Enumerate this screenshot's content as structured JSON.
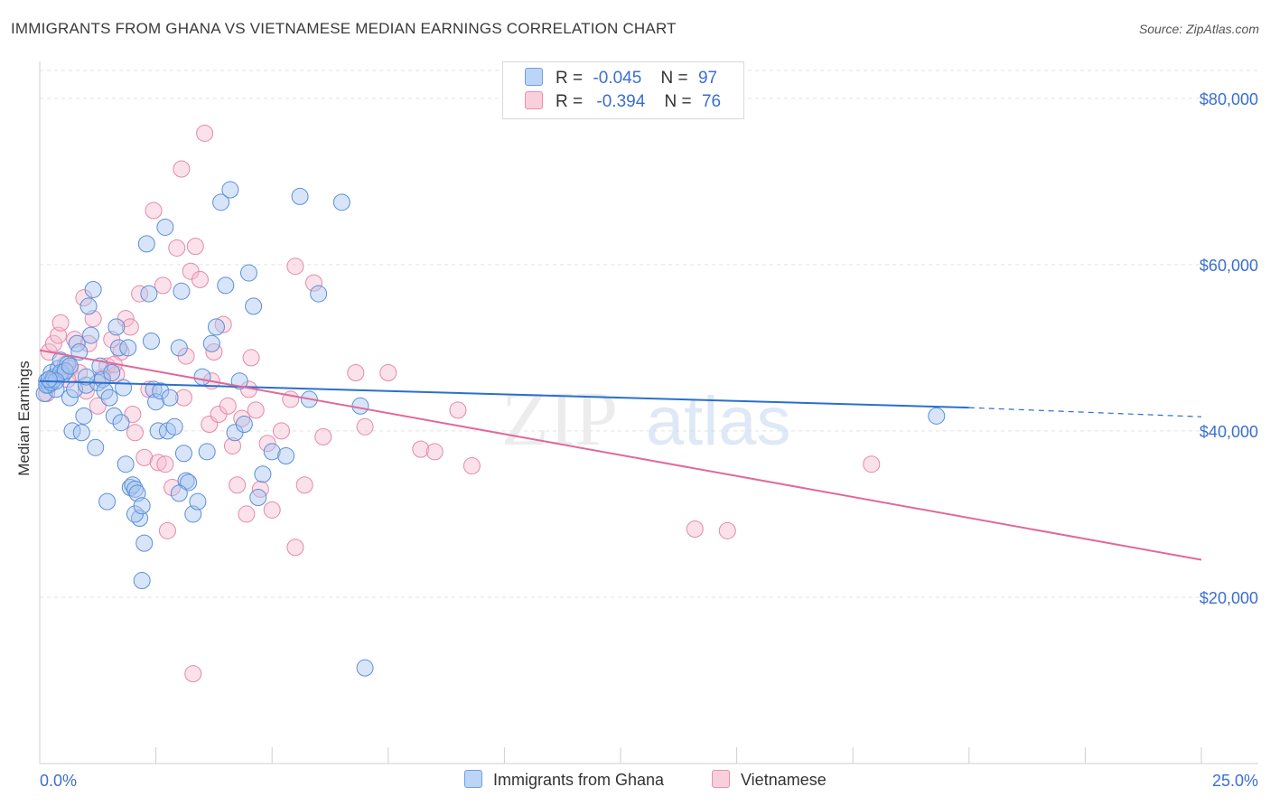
{
  "header": {
    "title": "IMMIGRANTS FROM GHANA VS VIETNAMESE MEDIAN EARNINGS CORRELATION CHART",
    "source": "Source: ZipAtlas.com"
  },
  "watermark": {
    "part1": "ZIP",
    "part2": "atlas"
  },
  "legend_top": [
    {
      "r_label": "R =",
      "r_value": "-0.045",
      "n_label": "N =",
      "n_value": "97"
    },
    {
      "r_label": "R =",
      "r_value": "-0.394",
      "n_label": "N =",
      "n_value": "76"
    }
  ],
  "legend_bottom": [
    {
      "label": "Immigrants from Ghana"
    },
    {
      "label": "Vietnamese"
    }
  ],
  "colors": {
    "ghana_fill": "#a8c6f0",
    "ghana_stroke": "#5b8fd9",
    "ghana_line": "#2a6fcf",
    "viet_fill": "#f7bdd0",
    "viet_stroke": "#e48aaa",
    "viet_line": "#e0699a",
    "axis_label": "#3a6fd1",
    "grid": "#e3e3e3"
  },
  "chart_data": {
    "type": "scatter",
    "title": "IMMIGRANTS FROM GHANA VS VIETNAMESE MEDIAN EARNINGS CORRELATION CHART",
    "xlabel": "",
    "ylabel": "Median Earnings",
    "xlim": [
      0,
      25
    ],
    "ylim": [
      0,
      84000
    ],
    "x_tick_labels": [
      "0.0%",
      "25.0%"
    ],
    "y_ticks": [
      20000,
      40000,
      60000,
      80000
    ],
    "y_tick_labels": [
      "$20,000",
      "$40,000",
      "$60,000",
      "$80,000"
    ],
    "grid": true,
    "legend_position": "top-center",
    "series": [
      {
        "name": "Immigrants from Ghana",
        "r": -0.045,
        "n": 97,
        "trend": {
          "x0": 0,
          "y0": 46000,
          "x1": 20,
          "y1": 42800,
          "dashed_to_x": 25,
          "dashed_to_y": 41700
        },
        "points": [
          [
            0.1,
            44500
          ],
          [
            0.15,
            46000
          ],
          [
            0.2,
            45500
          ],
          [
            0.25,
            47000
          ],
          [
            0.3,
            46500
          ],
          [
            0.35,
            45000
          ],
          [
            0.4,
            47500
          ],
          [
            0.45,
            48500
          ],
          [
            0.5,
            46800
          ],
          [
            0.55,
            47200
          ],
          [
            0.6,
            48000
          ],
          [
            0.65,
            44000
          ],
          [
            0.7,
            40000
          ],
          [
            0.75,
            45000
          ],
          [
            0.8,
            50500
          ],
          [
            0.85,
            49500
          ],
          [
            0.9,
            39800
          ],
          [
            0.95,
            41800
          ],
          [
            1.0,
            45500
          ],
          [
            1.05,
            55000
          ],
          [
            1.1,
            51500
          ],
          [
            1.15,
            57000
          ],
          [
            1.2,
            38000
          ],
          [
            1.25,
            45800
          ],
          [
            1.3,
            47800
          ],
          [
            1.35,
            46200
          ],
          [
            1.4,
            44800
          ],
          [
            1.45,
            31500
          ],
          [
            1.5,
            44000
          ],
          [
            1.55,
            47000
          ],
          [
            1.6,
            41800
          ],
          [
            1.65,
            52500
          ],
          [
            1.7,
            50000
          ],
          [
            1.75,
            41000
          ],
          [
            1.8,
            45200
          ],
          [
            1.85,
            36000
          ],
          [
            1.9,
            50000
          ],
          [
            1.95,
            33200
          ],
          [
            2.0,
            33500
          ],
          [
            2.05,
            33000
          ],
          [
            2.1,
            32500
          ],
          [
            2.15,
            29500
          ],
          [
            2.2,
            22000
          ],
          [
            2.25,
            26500
          ],
          [
            2.3,
            62500
          ],
          [
            2.35,
            56500
          ],
          [
            2.4,
            50800
          ],
          [
            2.45,
            45000
          ],
          [
            2.5,
            43500
          ],
          [
            2.55,
            40000
          ],
          [
            2.6,
            44800
          ],
          [
            2.7,
            64500
          ],
          [
            2.75,
            40000
          ],
          [
            2.8,
            44000
          ],
          [
            2.9,
            40500
          ],
          [
            3.0,
            50000
          ],
          [
            3.05,
            56800
          ],
          [
            3.1,
            37300
          ],
          [
            3.15,
            34000
          ],
          [
            3.2,
            33800
          ],
          [
            3.3,
            30000
          ],
          [
            3.4,
            31500
          ],
          [
            3.5,
            46500
          ],
          [
            3.6,
            37500
          ],
          [
            3.7,
            50500
          ],
          [
            3.8,
            52500
          ],
          [
            3.9,
            67500
          ],
          [
            4.0,
            57500
          ],
          [
            4.1,
            69000
          ],
          [
            4.2,
            39800
          ],
          [
            4.3,
            46000
          ],
          [
            4.4,
            40800
          ],
          [
            4.5,
            59000
          ],
          [
            4.6,
            55000
          ],
          [
            4.7,
            32000
          ],
          [
            4.8,
            34800
          ],
          [
            5.0,
            37500
          ],
          [
            5.3,
            37000
          ],
          [
            5.6,
            68200
          ],
          [
            5.8,
            43800
          ],
          [
            6.0,
            56500
          ],
          [
            6.5,
            67500
          ],
          [
            6.9,
            43000
          ],
          [
            7.0,
            11500
          ],
          [
            0.15,
            45500
          ],
          [
            0.25,
            45800
          ],
          [
            0.3,
            46200
          ],
          [
            0.45,
            47000
          ],
          [
            0.55,
            47200
          ],
          [
            1.0,
            46500
          ],
          [
            0.35,
            46000
          ],
          [
            0.65,
            47800
          ],
          [
            2.05,
            30000
          ],
          [
            2.2,
            31000
          ],
          [
            3.0,
            32500
          ],
          [
            19.3,
            41800
          ],
          [
            0.2,
            46200
          ]
        ]
      },
      {
        "name": "Vietnamese",
        "r": -0.394,
        "n": 76,
        "trend": {
          "x0": 0,
          "y0": 49700,
          "x1": 25,
          "y1": 24500
        },
        "points": [
          [
            0.15,
            44500
          ],
          [
            0.2,
            49500
          ],
          [
            0.3,
            50500
          ],
          [
            0.4,
            51500
          ],
          [
            0.45,
            53000
          ],
          [
            0.55,
            48000
          ],
          [
            0.65,
            47500
          ],
          [
            0.75,
            51000
          ],
          [
            0.85,
            47000
          ],
          [
            0.95,
            56000
          ],
          [
            1.05,
            50500
          ],
          [
            1.15,
            53500
          ],
          [
            1.25,
            43000
          ],
          [
            1.35,
            46500
          ],
          [
            1.45,
            47800
          ],
          [
            1.55,
            51000
          ],
          [
            1.65,
            46800
          ],
          [
            1.75,
            49500
          ],
          [
            1.85,
            53500
          ],
          [
            1.95,
            52500
          ],
          [
            2.05,
            39800
          ],
          [
            2.15,
            56500
          ],
          [
            2.25,
            36800
          ],
          [
            2.35,
            45000
          ],
          [
            2.45,
            66500
          ],
          [
            2.55,
            36200
          ],
          [
            2.65,
            57500
          ],
          [
            2.75,
            28000
          ],
          [
            2.85,
            33200
          ],
          [
            2.95,
            62000
          ],
          [
            3.05,
            71500
          ],
          [
            3.15,
            49000
          ],
          [
            3.25,
            59200
          ],
          [
            3.35,
            62200
          ],
          [
            3.45,
            58200
          ],
          [
            3.55,
            75800
          ],
          [
            3.65,
            40800
          ],
          [
            3.75,
            49500
          ],
          [
            3.85,
            42000
          ],
          [
            3.95,
            52800
          ],
          [
            4.05,
            43000
          ],
          [
            4.15,
            38200
          ],
          [
            4.25,
            33500
          ],
          [
            4.35,
            41500
          ],
          [
            4.45,
            30000
          ],
          [
            4.55,
            48800
          ],
          [
            4.65,
            42500
          ],
          [
            4.75,
            33000
          ],
          [
            5.0,
            30500
          ],
          [
            5.2,
            40000
          ],
          [
            5.4,
            43800
          ],
          [
            5.5,
            59800
          ],
          [
            5.7,
            33500
          ],
          [
            5.9,
            57800
          ],
          [
            6.1,
            39300
          ],
          [
            6.8,
            47000
          ],
          [
            7.0,
            40500
          ],
          [
            7.5,
            47000
          ],
          [
            8.2,
            37800
          ],
          [
            8.5,
            37500
          ],
          [
            9.0,
            42500
          ],
          [
            9.3,
            35800
          ],
          [
            14.1,
            28200
          ],
          [
            14.8,
            28000
          ],
          [
            17.9,
            36000
          ],
          [
            3.3,
            10800
          ],
          [
            1.0,
            44800
          ],
          [
            2.7,
            36000
          ],
          [
            3.7,
            46000
          ],
          [
            4.5,
            45000
          ],
          [
            5.5,
            26000
          ],
          [
            1.6,
            48000
          ],
          [
            0.6,
            46200
          ],
          [
            2.0,
            42000
          ],
          [
            3.1,
            44000
          ],
          [
            4.9,
            38500
          ]
        ]
      }
    ]
  }
}
